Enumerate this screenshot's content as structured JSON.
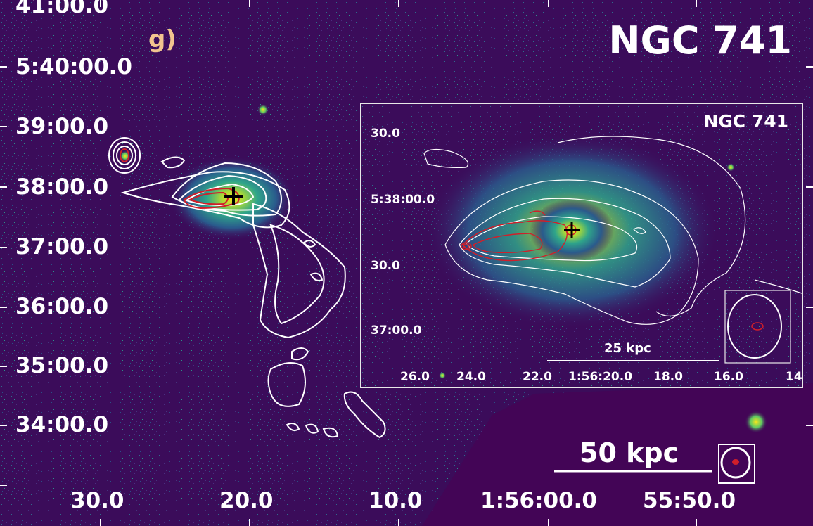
{
  "title": "NGC 741",
  "panel_label": "g)",
  "dec_labels": [
    "41:00.0",
    "5:40:00.0",
    "39:00.0",
    "38:00.0",
    "37:00.0",
    "36:00.0",
    "35:00.0",
    "34:00.0"
  ],
  "ra_labels": [
    "30.0",
    "20.0",
    "10.0",
    "1:56:00.0",
    "55:50.0"
  ],
  "scale_bar": "50 kpc",
  "inset": {
    "title": "NGC 741",
    "dec_labels": [
      "30.0",
      "5:38:00.0",
      "30.0",
      "37:00.0"
    ],
    "ra_labels": [
      "26.0",
      "24.0",
      "22.0",
      "1:56:20.0",
      "18.0",
      "16.0",
      "14"
    ],
    "scale_bar": "25 kpc"
  },
  "colors": {
    "background": "#3b0c5a",
    "contour_radio": "#ffffff",
    "contour_xray": "#d01f2a",
    "core": "#f6e61e",
    "panel_label": "#f2c48f"
  }
}
